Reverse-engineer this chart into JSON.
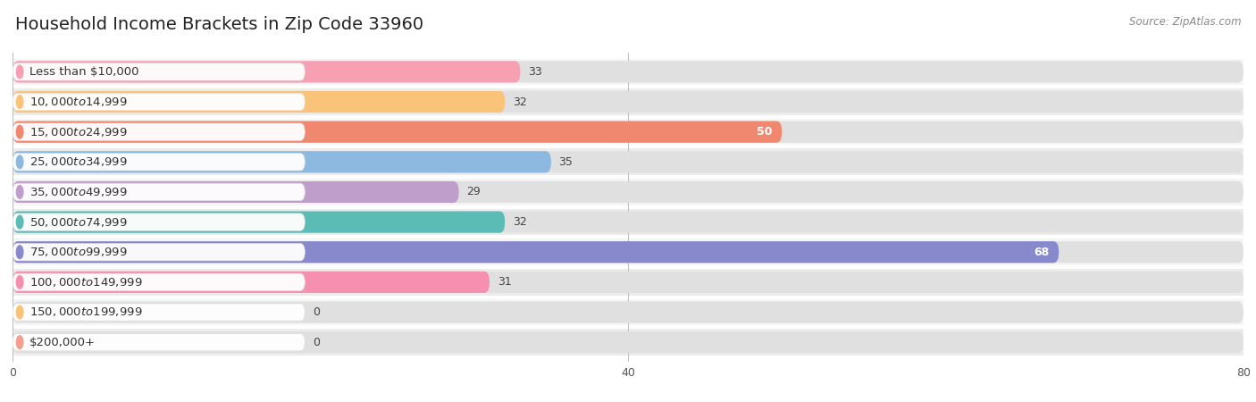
{
  "title": "Household Income Brackets in Zip Code 33960",
  "source": "Source: ZipAtlas.com",
  "categories": [
    "Less than $10,000",
    "$10,000 to $14,999",
    "$15,000 to $24,999",
    "$25,000 to $34,999",
    "$35,000 to $49,999",
    "$50,000 to $74,999",
    "$75,000 to $99,999",
    "$100,000 to $149,999",
    "$150,000 to $199,999",
    "$200,000+"
  ],
  "values": [
    33,
    32,
    50,
    35,
    29,
    32,
    68,
    31,
    0,
    0
  ],
  "bar_colors": [
    "#f7a0b4",
    "#f9c47a",
    "#f08870",
    "#8db8e0",
    "#c09ecc",
    "#5abcb4",
    "#8888cc",
    "#f790b0",
    "#f9c47a",
    "#f4a090"
  ],
  "label_colors_inside": "#ffffff",
  "label_colors_outside": "#444444",
  "xlim": [
    0,
    80
  ],
  "xticks": [
    0,
    40,
    80
  ],
  "background_color": "#f5f5f5",
  "bar_background_color": "#e8e8e8",
  "row_bg_light": "#f9f9f9",
  "row_bg_dark": "#f0f0f0",
  "title_fontsize": 14,
  "label_fontsize": 9.5,
  "value_fontsize": 9,
  "source_fontsize": 8.5,
  "inside_threshold": 50
}
